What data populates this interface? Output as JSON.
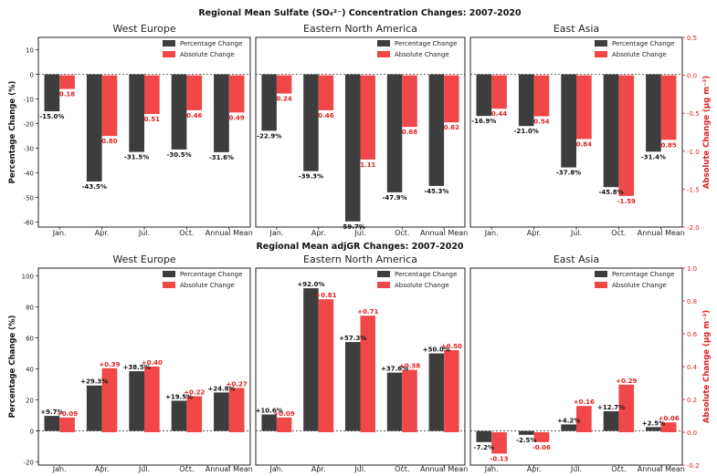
{
  "colors": {
    "percentage": "#3d3d3d",
    "absolute": "#f04848",
    "absolute_axis": "#e02020"
  },
  "rows": [
    {
      "title": "Regional Mean Sulfate (SO₄²⁻) Concentration Changes: 2007-2020",
      "left_ylabel": "Percentage Change (%)",
      "right_ylabel": "Absolute Change (μg m⁻³)",
      "left_ticks": [
        10,
        0,
        -10,
        -20,
        -30,
        -40,
        -50,
        -60
      ],
      "right_ticks": [
        "0.5",
        "0.0",
        "-0.5",
        "-1.0",
        "-1.5",
        "-2.0"
      ]
    },
    {
      "title": "Regional Mean adjGR Changes: 2007-2020",
      "left_ylabel": "Percentage Change (%)",
      "right_ylabel": "Absolute Change (μg m⁻³)",
      "left_ticks": [
        100,
        80,
        60,
        40,
        20,
        0,
        -20
      ],
      "right_ticks": [
        "1.0",
        "0.8",
        "0.6",
        "0.4",
        "0.2",
        "0.0",
        "-0.2"
      ]
    }
  ],
  "legend": {
    "percentage": "Percentage Change",
    "absolute": "Absolute Change"
  },
  "chart_data": [
    {
      "type": "bar",
      "title": "West Europe",
      "group": "Sulfate",
      "categories": [
        "Jan.",
        "Apr.",
        "Jul.",
        "Oct.",
        "Annual Mean"
      ],
      "ylabel": "Percentage Change (%)",
      "ylim": [
        -62,
        15
      ],
      "y2label": "Absolute Change (μg m⁻³)",
      "y2lim": [
        -2.0,
        0.5
      ],
      "series": [
        {
          "name": "Percentage Change",
          "axis": "left",
          "values": [
            -15.0,
            -43.5,
            -31.5,
            -30.5,
            -31.6
          ],
          "labels": [
            "-15.0%",
            "-43.5%",
            "-31.5%",
            "-30.5%",
            "-31.6%"
          ]
        },
        {
          "name": "Absolute Change",
          "axis": "right",
          "values": [
            -0.18,
            -0.8,
            -0.51,
            -0.46,
            -0.49
          ],
          "labels": [
            "0.18",
            "0.80",
            "0.51",
            "0.46",
            "0.49"
          ]
        }
      ]
    },
    {
      "type": "bar",
      "title": "Eastern North America",
      "group": "Sulfate",
      "categories": [
        "Jan.",
        "Apr.",
        "Jul.",
        "Oct.",
        "Annual Mean"
      ],
      "ylabel": "Percentage Change (%)",
      "ylim": [
        -62,
        15
      ],
      "y2label": "Absolute Change (μg m⁻³)",
      "y2lim": [
        -2.0,
        0.5
      ],
      "series": [
        {
          "name": "Percentage Change",
          "axis": "left",
          "values": [
            -22.9,
            -39.3,
            -59.7,
            -47.9,
            -45.3
          ],
          "labels": [
            "-22.9%",
            "-39.3%",
            "-59.7%",
            "-47.9%",
            "-45.3%"
          ]
        },
        {
          "name": "Absolute Change",
          "axis": "right",
          "values": [
            -0.24,
            -0.46,
            -1.11,
            -0.68,
            -0.62
          ],
          "labels": [
            "0.24",
            "0.46",
            "1.11",
            "0.68",
            "0.62"
          ]
        }
      ]
    },
    {
      "type": "bar",
      "title": "East Asia",
      "group": "Sulfate",
      "categories": [
        "Jan.",
        "Apr.",
        "Jul.",
        "Oct.",
        "Annual Mean"
      ],
      "ylabel": "Percentage Change (%)",
      "ylim": [
        -62,
        15
      ],
      "y2label": "Absolute Change (μg m⁻³)",
      "y2lim": [
        -2.0,
        0.5
      ],
      "series": [
        {
          "name": "Percentage Change",
          "axis": "left",
          "values": [
            -16.9,
            -21.0,
            -37.8,
            -45.8,
            -31.4
          ],
          "labels": [
            "-16.9%",
            "-21.0%",
            "-37.8%",
            "-45.8%",
            "-31.4%"
          ]
        },
        {
          "name": "Absolute Change",
          "axis": "right",
          "values": [
            -0.44,
            -0.54,
            -0.84,
            -1.59,
            -0.85
          ],
          "labels": [
            "0.44",
            "0.54",
            "0.84",
            "-1.59",
            "0.85"
          ]
        }
      ]
    },
    {
      "type": "bar",
      "title": "West Europe",
      "group": "adjGR",
      "categories": [
        "Jan.",
        "Apr.",
        "Jul.",
        "Oct.",
        "Annual Mean"
      ],
      "ylabel": "Percentage Change (%)",
      "ylim": [
        -22,
        105
      ],
      "y2label": "Absolute Change (μg m⁻³)",
      "y2lim": [
        -0.2,
        1.0
      ],
      "series": [
        {
          "name": "Percentage Change",
          "axis": "left",
          "values": [
            9.7,
            29.3,
            38.5,
            19.5,
            24.8
          ],
          "labels": [
            "+9.7%",
            "+29.3%",
            "+38.5%",
            "+19.5%",
            "+24.8%"
          ]
        },
        {
          "name": "Absolute Change",
          "axis": "right",
          "values": [
            0.09,
            0.39,
            0.4,
            0.22,
            0.27
          ],
          "labels": [
            "+0.09",
            "+0.39",
            "+0.40",
            "+0.22",
            "+0.27"
          ]
        }
      ]
    },
    {
      "type": "bar",
      "title": "Eastern North America",
      "group": "adjGR",
      "categories": [
        "Jan.",
        "Apr.",
        "Jul.",
        "Oct.",
        "Annual Mean"
      ],
      "ylabel": "Percentage Change (%)",
      "ylim": [
        -22,
        105
      ],
      "y2label": "Absolute Change (μg m⁻³)",
      "y2lim": [
        -0.2,
        1.0
      ],
      "series": [
        {
          "name": "Percentage Change",
          "axis": "left",
          "values": [
            10.6,
            92.0,
            57.3,
            37.6,
            50.0
          ],
          "labels": [
            "+10.6%",
            "+92.0%",
            "+57.3%",
            "+37.6%",
            "+50.0%"
          ]
        },
        {
          "name": "Absolute Change",
          "axis": "right",
          "values": [
            0.09,
            0.81,
            0.71,
            0.38,
            0.5
          ],
          "labels": [
            "+0.09",
            "+0.81",
            "+0.71",
            "+0.38",
            "+0.50"
          ]
        }
      ]
    },
    {
      "type": "bar",
      "title": "East Asia",
      "group": "adjGR",
      "categories": [
        "Jan.",
        "Apr.",
        "Jul.",
        "Oct.",
        "Annual Mean"
      ],
      "ylabel": "Percentage Change (%)",
      "ylim": [
        -22,
        105
      ],
      "y2label": "Absolute Change (μg m⁻³)",
      "y2lim": [
        -0.2,
        1.0
      ],
      "series": [
        {
          "name": "Percentage Change",
          "axis": "left",
          "values": [
            -7.2,
            -2.5,
            4.2,
            12.7,
            2.5
          ],
          "labels": [
            "-7.2%",
            "-2.5%",
            "+4.2%",
            "+12.7%",
            "+2.5%"
          ]
        },
        {
          "name": "Absolute Change",
          "axis": "right",
          "values": [
            -0.13,
            -0.06,
            0.16,
            0.29,
            0.06
          ],
          "labels": [
            "-0.13",
            "-0.06",
            "+0.16",
            "+0.29",
            "+0.06"
          ]
        }
      ]
    }
  ]
}
